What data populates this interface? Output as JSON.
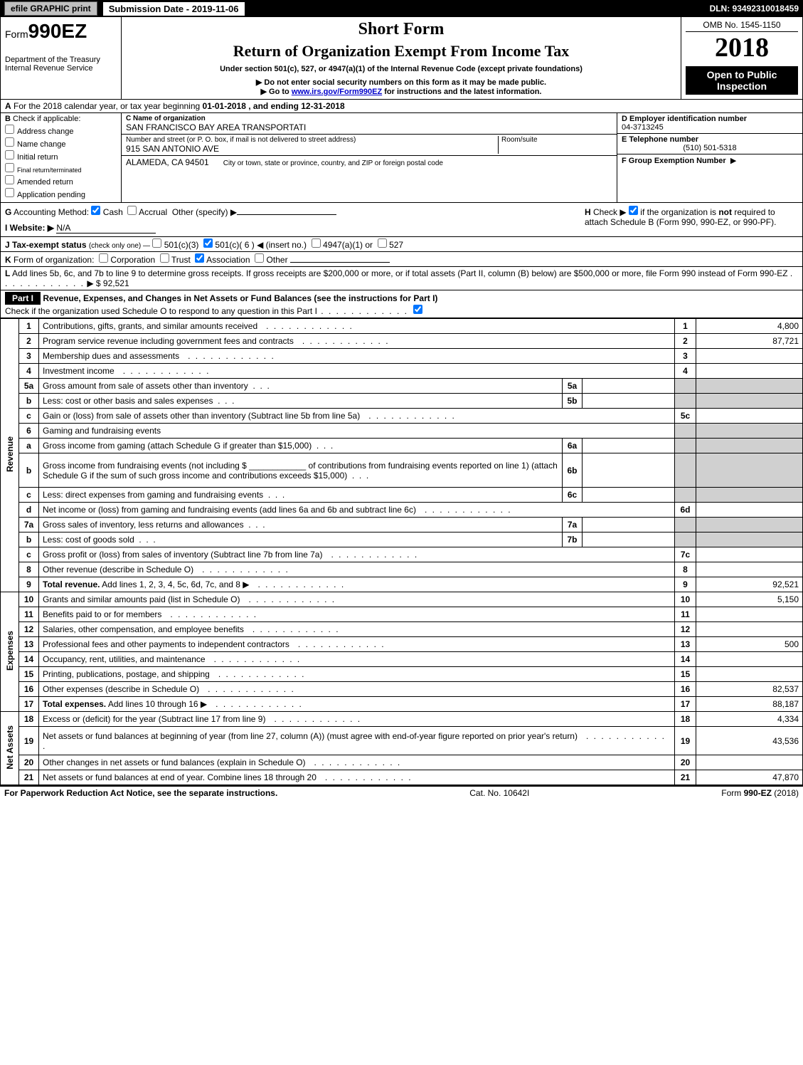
{
  "topbar": {
    "efile_label": "efile GRAPHIC print",
    "submission_date_label": "Submission Date - 2019-11-06",
    "dln": "DLN: 93492310018459"
  },
  "header": {
    "form_prefix": "Form",
    "form_number": "990EZ",
    "dept": "Department of the Treasury",
    "irs": "Internal Revenue Service",
    "short_form": "Short Form",
    "return_title": "Return of Organization Exempt From Income Tax",
    "under_section": "Under section 501(c), 527, or 4947(a)(1) of the Internal Revenue Code (except private foundations)",
    "do_not_enter": "Do not enter social security numbers on this form as it may be made public.",
    "goto_pre": "Go to ",
    "goto_link": "www.irs.gov/Form990EZ",
    "goto_post": " for instructions and the latest information.",
    "omb": "OMB No. 1545-1150",
    "year": "2018",
    "open_public_1": "Open to Public",
    "open_public_2": "Inspection"
  },
  "rowA": {
    "label_a": "A",
    "text_pre": "For the 2018 calendar year, or tax year beginning ",
    "begin_date": "01-01-2018",
    "mid": " , and ending ",
    "end_date": "12-31-2018"
  },
  "boxB": {
    "label": "B",
    "check_if": "Check if applicable:",
    "items": [
      "Address change",
      "Name change",
      "Initial return",
      "Final return/terminated",
      "Amended return",
      "Application pending"
    ]
  },
  "boxC": {
    "name_label": "C Name of organization",
    "org_name": "SAN FRANCISCO BAY AREA TRANSPORTATI",
    "street_label": "Number and street (or P. O. box, if mail is not delivered to street address)",
    "street": "915 SAN ANTONIO AVE",
    "room_label": "Room/suite",
    "room": "",
    "city_label": "City or town, state or province, country, and ZIP or foreign postal code",
    "city": "ALAMEDA, CA  94501"
  },
  "boxDEF": {
    "d_label": "D Employer identification number",
    "d_val": "04-3713245",
    "e_label": "E Telephone number",
    "e_val": "(510) 501-5318",
    "f_label": "F Group Exemption Number",
    "f_arrow": "▶"
  },
  "rowG": {
    "label": "G",
    "text": "Accounting Method:",
    "cash": "Cash",
    "accrual": "Accrual",
    "other": "Other (specify) ▶"
  },
  "rowH": {
    "label": "H",
    "text_1": "Check ▶",
    "text_2": " if the organization is ",
    "not": "not",
    "text_3": " required to attach Schedule B (Form 990, 990-EZ, or 990-PF)."
  },
  "rowI": {
    "label": "I Website: ▶",
    "val": "N/A"
  },
  "rowJ": {
    "label": "J Tax-exempt status",
    "sub": "(check only one) —",
    "o1": "501(c)(3)",
    "o2": "501(c)( 6 ) ◀ (insert no.)",
    "o3": "4947(a)(1) or",
    "o4": "527"
  },
  "rowK": {
    "label": "K",
    "text": "Form of organization:",
    "corp": "Corporation",
    "trust": "Trust",
    "assoc": "Association",
    "other": "Other"
  },
  "rowL": {
    "label": "L",
    "text_1": "Add lines 5b, 6c, and 7b to line 9 to determine gross receipts. If gross receipts are $200,000 or more, or if total assets (Part II, column (B) below) are $500,000 or more, file Form 990 instead of Form 990-EZ",
    "arrow_val": "▶ $ 92,521"
  },
  "partI": {
    "part_label": "Part I",
    "title": "Revenue, Expenses, and Changes in Net Assets or Fund Balances (see the instructions for Part I)",
    "sub": "Check if the organization used Schedule O to respond to any question in this Part I"
  },
  "sections": {
    "revenue": "Revenue",
    "expenses": "Expenses",
    "netassets": "Net Assets"
  },
  "lines": [
    {
      "sec": "revenue",
      "n": "1",
      "desc": "Contributions, gifts, grants, and similar amounts received",
      "rn": "1",
      "rv": "4,800"
    },
    {
      "sec": "revenue",
      "n": "2",
      "desc": "Program service revenue including government fees and contracts",
      "rn": "2",
      "rv": "87,721"
    },
    {
      "sec": "revenue",
      "n": "3",
      "desc": "Membership dues and assessments",
      "rn": "3",
      "rv": ""
    },
    {
      "sec": "revenue",
      "n": "4",
      "desc": "Investment income",
      "rn": "4",
      "rv": ""
    },
    {
      "sec": "revenue",
      "n": "5a",
      "desc": "Gross amount from sale of assets other than inventory",
      "sn": "5a",
      "sv": "",
      "shade": true
    },
    {
      "sec": "revenue",
      "n": "b",
      "desc": "Less: cost or other basis and sales expenses",
      "sn": "5b",
      "sv": "",
      "shade": true
    },
    {
      "sec": "revenue",
      "n": "c",
      "desc": "Gain or (loss) from sale of assets other than inventory (Subtract line 5b from line 5a)",
      "rn": "5c",
      "rv": ""
    },
    {
      "sec": "revenue",
      "n": "6",
      "desc": "Gaming and fundraising events",
      "shade": true
    },
    {
      "sec": "revenue",
      "n": "a",
      "desc": "Gross income from gaming (attach Schedule G if greater than $15,000)",
      "sn": "6a",
      "sv": "",
      "shade": true
    },
    {
      "sec": "revenue",
      "n": "b",
      "desc": "Gross income from fundraising events (not including $ ____________ of contributions from fundraising events reported on line 1) (attach Schedule G if the sum of such gross income and contributions exceeds $15,000)",
      "sn": "6b",
      "sv": "",
      "shade": true,
      "tall": true
    },
    {
      "sec": "revenue",
      "n": "c",
      "desc": "Less: direct expenses from gaming and fundraising events",
      "sn": "6c",
      "sv": "",
      "shade": true
    },
    {
      "sec": "revenue",
      "n": "d",
      "desc": "Net income or (loss) from gaming and fundraising events (add lines 6a and 6b and subtract line 6c)",
      "rn": "6d",
      "rv": ""
    },
    {
      "sec": "revenue",
      "n": "7a",
      "desc": "Gross sales of inventory, less returns and allowances",
      "sn": "7a",
      "sv": "",
      "shade": true
    },
    {
      "sec": "revenue",
      "n": "b",
      "desc": "Less: cost of goods sold",
      "sn": "7b",
      "sv": "",
      "shade": true
    },
    {
      "sec": "revenue",
      "n": "c",
      "desc": "Gross profit or (loss) from sales of inventory (Subtract line 7b from line 7a)",
      "rn": "7c",
      "rv": ""
    },
    {
      "sec": "revenue",
      "n": "8",
      "desc": "Other revenue (describe in Schedule O)",
      "rn": "8",
      "rv": ""
    },
    {
      "sec": "revenue",
      "n": "9",
      "desc": "Total revenue. Add lines 1, 2, 3, 4, 5c, 6d, 7c, and 8   ▶",
      "rn": "9",
      "rv": "92,521",
      "bold": true
    },
    {
      "sec": "expenses",
      "n": "10",
      "desc": "Grants and similar amounts paid (list in Schedule O)",
      "rn": "10",
      "rv": "5,150"
    },
    {
      "sec": "expenses",
      "n": "11",
      "desc": "Benefits paid to or for members",
      "rn": "11",
      "rv": ""
    },
    {
      "sec": "expenses",
      "n": "12",
      "desc": "Salaries, other compensation, and employee benefits",
      "rn": "12",
      "rv": ""
    },
    {
      "sec": "expenses",
      "n": "13",
      "desc": "Professional fees and other payments to independent contractors",
      "rn": "13",
      "rv": "500"
    },
    {
      "sec": "expenses",
      "n": "14",
      "desc": "Occupancy, rent, utilities, and maintenance",
      "rn": "14",
      "rv": ""
    },
    {
      "sec": "expenses",
      "n": "15",
      "desc": "Printing, publications, postage, and shipping",
      "rn": "15",
      "rv": ""
    },
    {
      "sec": "expenses",
      "n": "16",
      "desc": "Other expenses (describe in Schedule O)",
      "rn": "16",
      "rv": "82,537"
    },
    {
      "sec": "expenses",
      "n": "17",
      "desc": "Total expenses. Add lines 10 through 16   ▶",
      "rn": "17",
      "rv": "88,187",
      "bold": true
    },
    {
      "sec": "netassets",
      "n": "18",
      "desc": "Excess or (deficit) for the year (Subtract line 17 from line 9)",
      "rn": "18",
      "rv": "4,334"
    },
    {
      "sec": "netassets",
      "n": "19",
      "desc": "Net assets or fund balances at beginning of year (from line 27, column (A)) (must agree with end-of-year figure reported on prior year's return)",
      "rn": "19",
      "rv": "43,536",
      "tall": true
    },
    {
      "sec": "netassets",
      "n": "20",
      "desc": "Other changes in net assets or fund balances (explain in Schedule O)",
      "rn": "20",
      "rv": ""
    },
    {
      "sec": "netassets",
      "n": "21",
      "desc": "Net assets or fund balances at end of year. Combine lines 18 through 20",
      "rn": "21",
      "rv": "47,870"
    }
  ],
  "footer": {
    "left": "For Paperwork Reduction Act Notice, see the separate instructions.",
    "mid": "Cat. No. 10642I",
    "right": "Form 990-EZ (2018)"
  },
  "colors": {
    "black": "#000000",
    "white": "#ffffff",
    "shade": "#d0d0d0",
    "link": "#0000cc",
    "button": "#c0c0c0"
  }
}
